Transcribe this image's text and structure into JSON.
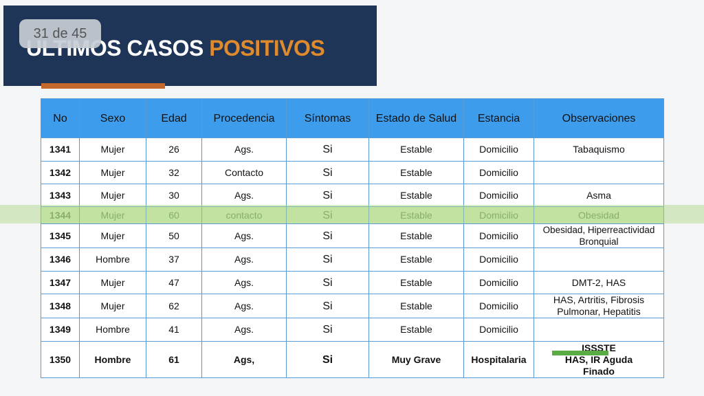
{
  "page_counter": "31 de 45",
  "header": {
    "title_white": "ULTIMOS CASOS",
    "title_orange": "POSITIVOS"
  },
  "table": {
    "columns": [
      "No",
      "Sexo",
      "Edad",
      "Procedencia",
      "Síntomas",
      "Estado de Salud",
      "Estancia",
      "Observaciones"
    ],
    "rows": [
      [
        "1341",
        "Mujer",
        "26",
        "Ags.",
        "Si",
        "Estable",
        "Domicilio",
        "Tabaquismo"
      ],
      [
        "1342",
        "Mujer",
        "32",
        "Contacto",
        "Si",
        "Estable",
        "Domicilio",
        ""
      ],
      [
        "1343",
        "Mujer",
        "30",
        "Ags.",
        "Si",
        "Estable",
        "Domicilio",
        "Asma"
      ],
      [
        "1344",
        "Mujer",
        "60",
        "contacto",
        "Si",
        "Estable",
        "Domicilio",
        "Obesidad"
      ],
      [
        "1345",
        "Mujer",
        "50",
        "Ags.",
        "Si",
        "Estable",
        "Domicilio",
        "Obesidad, Hiperreactividad Bronquial"
      ],
      [
        "1346",
        "Hombre",
        "37",
        "Ags.",
        "Si",
        "Estable",
        "Domicilio",
        ""
      ],
      [
        "1347",
        "Mujer",
        "47",
        "Ags.",
        "Si",
        "Estable",
        "Domicilio",
        "DMT-2, HAS"
      ],
      [
        "1348",
        "Mujer",
        "62",
        "Ags.",
        "Si",
        "Estable",
        "Domicilio",
        "HAS, Artritis, Fibrosis Pulmonar, Hepatitis"
      ],
      [
        "1349",
        "Hombre",
        "41",
        "Ags.",
        "Si",
        "Estable",
        "Domicilio",
        ""
      ],
      [
        "1350",
        "Hombre",
        "61",
        "Ags,",
        "Si",
        "Muy Grave",
        "Hospitalaria",
        "ISSSTE\nHAS, IR Aguda\nFinado"
      ]
    ]
  }
}
